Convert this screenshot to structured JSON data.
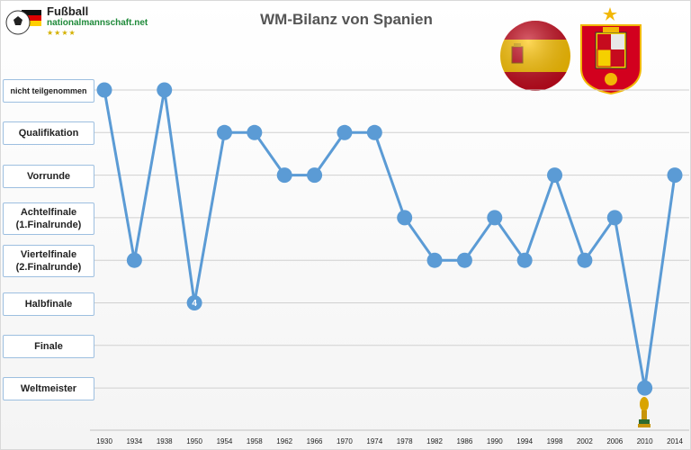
{
  "header": {
    "logo_line1": "Fußball",
    "logo_line2": "nationalmannschaft.net",
    "logo_stars": "★★★★"
  },
  "chart_data": {
    "type": "line",
    "title": "WM-Bilanz von Spanien",
    "categories": [
      "nicht teilgenommen",
      "Qualifikation",
      "Vorrunde",
      "Achtelfinale\n(1.Finalrunde)",
      "Viertelfinale\n(2.Finalrunde)",
      "Halbfinale",
      "Finale",
      "Weltmeister"
    ],
    "x": [
      "1930",
      "1934",
      "1938",
      "1950",
      "1954",
      "1958",
      "1962",
      "1966",
      "1970",
      "1974",
      "1978",
      "1982",
      "1986",
      "1990",
      "1994",
      "1998",
      "2002",
      "2006",
      "2010",
      "2014"
    ],
    "series": [
      {
        "color": "#5b9bd5",
        "values": [
          "nicht teilgenommen",
          "Viertelfinale\n(2.Finalrunde)",
          "nicht teilgenommen",
          "Halbfinale",
          "Qualifikation",
          "Qualifikation",
          "Vorrunde",
          "Vorrunde",
          "Qualifikation",
          "Qualifikation",
          "Achtelfinale\n(1.Finalrunde)",
          "Viertelfinale\n(2.Finalrunde)",
          "Viertelfinale\n(2.Finalrunde)",
          "Achtelfinale\n(1.Finalrunde)",
          "Viertelfinale\n(2.Finalrunde)",
          "Vorrunde",
          "Viertelfinale\n(2.Finalrunde)",
          "Achtelfinale\n(1.Finalrunde)",
          "Weltmeister",
          "Vorrunde"
        ]
      }
    ],
    "annotations": [
      {
        "x": "1950",
        "text": "4"
      }
    ],
    "grid": true,
    "colors": {
      "line": "#5b9bd5",
      "grid": "#d0d0d0",
      "box_border": "#9dbfe0"
    }
  }
}
